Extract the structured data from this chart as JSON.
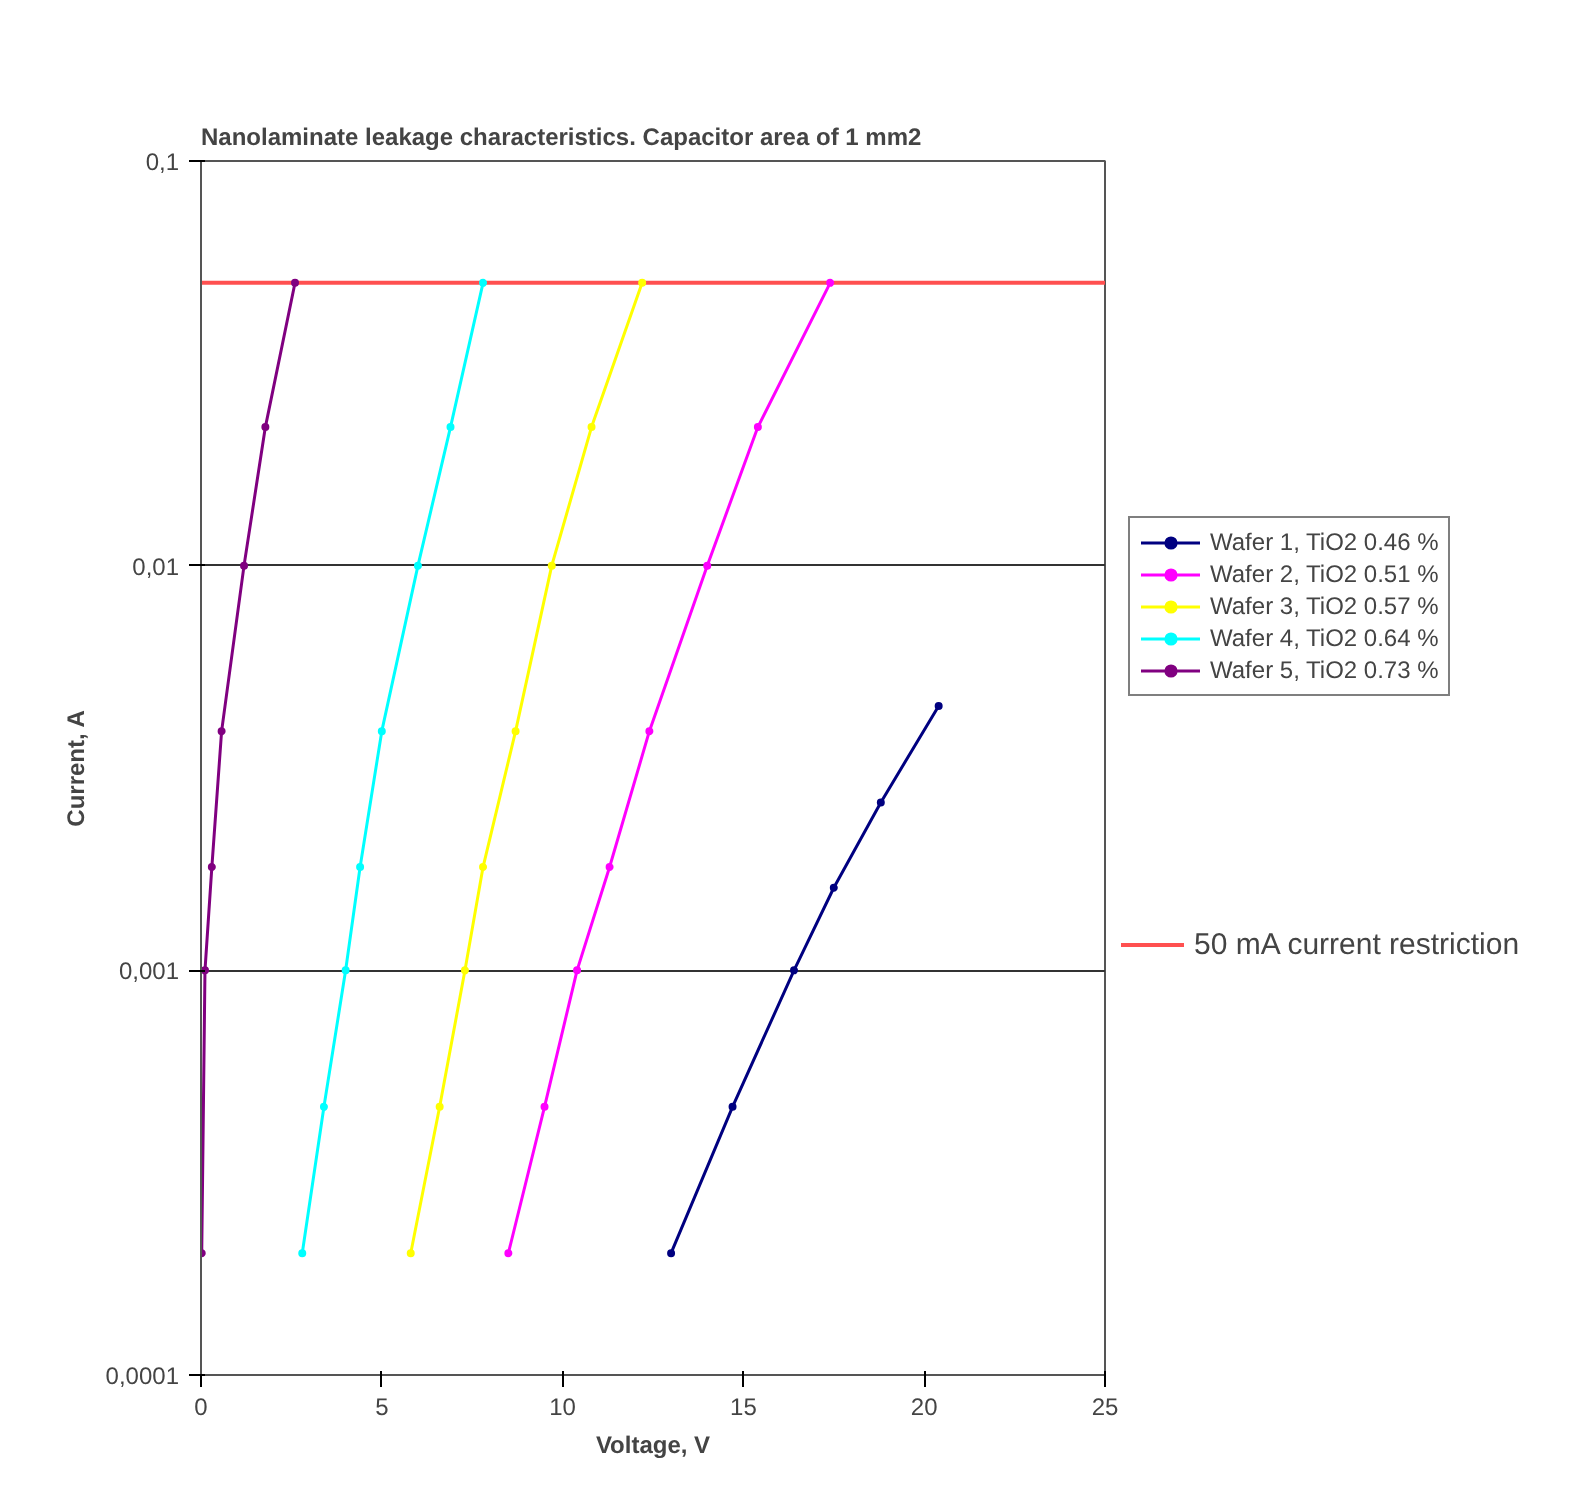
{
  "chart_data": {
    "type": "line",
    "title": "Nanolaminate leakage characteristics.  Capacitor area of 1 mm2",
    "xlabel": "Voltage, V",
    "ylabel": "Current, A",
    "xlim": [
      0,
      25
    ],
    "xticks": [
      0,
      5,
      10,
      15,
      20,
      25
    ],
    "ylim": [
      0.0001,
      0.1
    ],
    "yticks": [
      {
        "value": 0.0001,
        "label": "0,0001"
      },
      {
        "value": 0.001,
        "label": "0,001"
      },
      {
        "value": 0.01,
        "label": "0,01"
      },
      {
        "value": 0.1,
        "label": "0,1"
      }
    ],
    "log": "y",
    "grid": "y",
    "legend": "right",
    "marker": "circle",
    "line_style": "solid",
    "series": [
      {
        "name": "Wafer 1, TiO2 0.46 %",
        "color": "#000080",
        "x": [
          13.0,
          14.7,
          16.4,
          17.5,
          18.8,
          20.4
        ],
        "values": [
          0.0002,
          0.00046,
          0.001,
          0.0016,
          0.0026,
          0.0045
        ]
      },
      {
        "name": "Wafer 2, TiO2 0.51 %",
        "color": "#ff00ff",
        "x": [
          8.5,
          9.5,
          10.4,
          11.3,
          12.4,
          14.0,
          15.4,
          17.4
        ],
        "values": [
          0.0002,
          0.00046,
          0.001,
          0.0018,
          0.0039,
          0.01,
          0.022,
          0.05
        ]
      },
      {
        "name": "Wafer 3, TiO2 0.57 %",
        "color": "#ffff00",
        "x": [
          5.8,
          6.6,
          7.3,
          7.8,
          8.7,
          9.7,
          10.8,
          12.2
        ],
        "values": [
          0.0002,
          0.00046,
          0.001,
          0.0018,
          0.0039,
          0.01,
          0.022,
          0.05
        ]
      },
      {
        "name": "Wafer 4, TiO2 0.64 %",
        "color": "#00ffff",
        "x": [
          2.8,
          3.4,
          4.0,
          4.4,
          5.0,
          6.0,
          6.9,
          7.8
        ],
        "values": [
          0.0002,
          0.00046,
          0.001,
          0.0018,
          0.0039,
          0.01,
          0.022,
          0.05
        ]
      },
      {
        "name": "Wafer 5, TiO2 0.73 %",
        "color": "#800080",
        "x": [
          0.02,
          0.11,
          0.3,
          0.57,
          1.19,
          1.78,
          2.6
        ],
        "values": [
          0.0002,
          0.001,
          0.0018,
          0.0039,
          0.01,
          0.022,
          0.05
        ]
      }
    ],
    "ref_lines": [
      {
        "axis": "y",
        "value": 0.05,
        "label": "50 mA current restriction",
        "color": "#ff5050"
      }
    ]
  }
}
